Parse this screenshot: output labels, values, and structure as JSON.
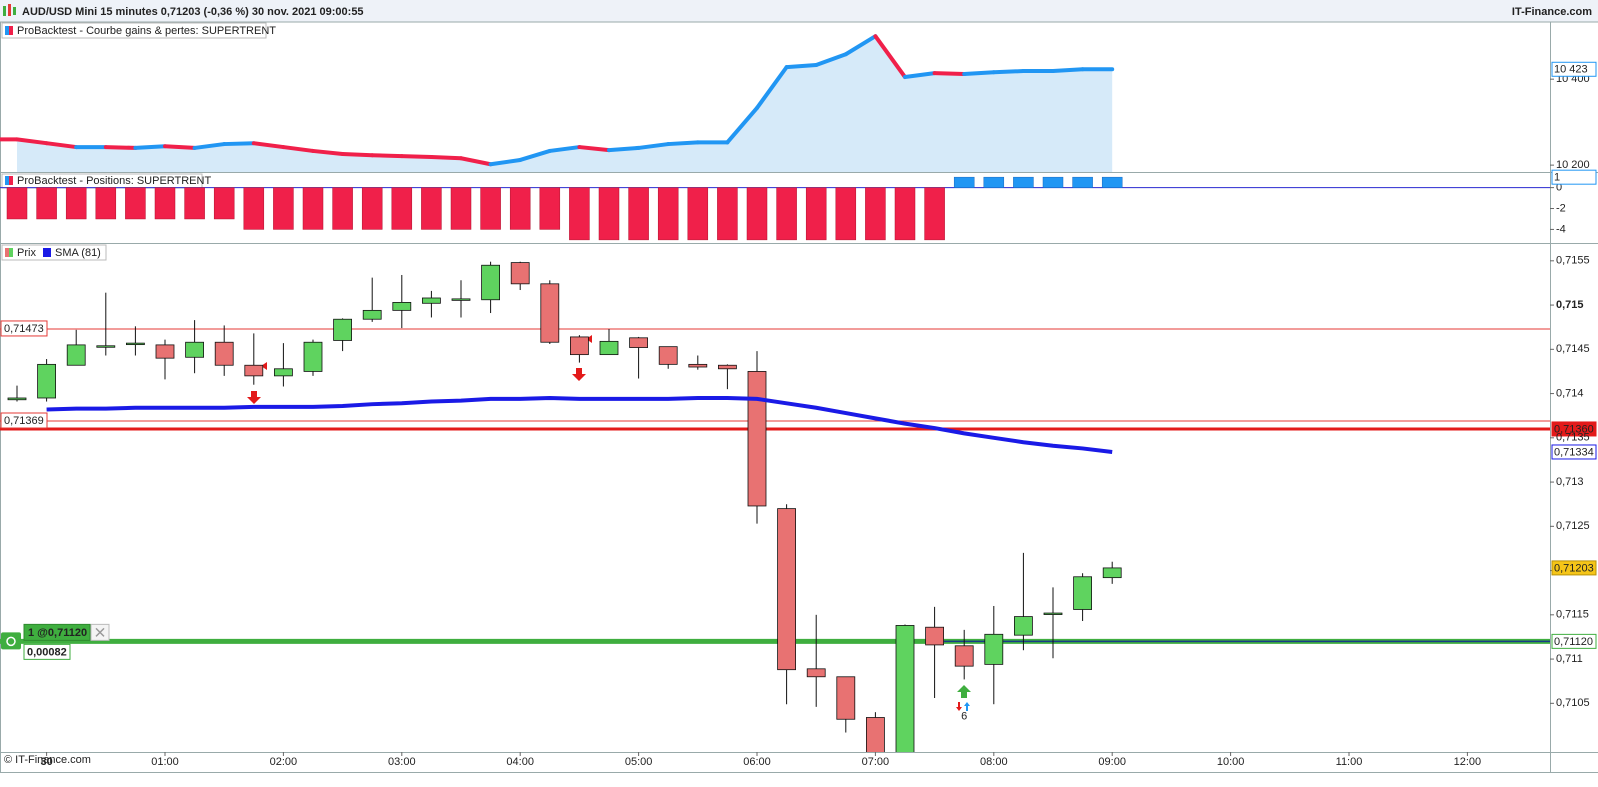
{
  "header": {
    "title": "AUD/USD Mini 15 minutes 0,71203 (-0,36 %) 30 nov. 2021 09:00:55",
    "brand": "IT-Finance.com"
  },
  "footer": {
    "copyright": "© IT-Finance.com"
  },
  "chart_data": [
    {
      "type": "area-line",
      "title": "ProBacktest - Courbe gains & pertes: SUPERTRENT",
      "color_up": "#2196f3",
      "color_down": "#f0204a",
      "fill": "#d6eaf9",
      "values": [
        10260,
        10251,
        10242,
        10242,
        10240,
        10244,
        10240,
        10249,
        10251,
        10242,
        10233,
        10226,
        10223,
        10221,
        10219,
        10216,
        10202,
        10212,
        10233,
        10242,
        10235,
        10240,
        10249,
        10253,
        10253,
        10333,
        10428,
        10433,
        10458,
        10500,
        10405,
        10414,
        10412,
        10416,
        10419,
        10419,
        10423,
        10423,
        null,
        null,
        null,
        null,
        null,
        null,
        null,
        null,
        null,
        null,
        null,
        null,
        null,
        null
      ],
      "value_labels": [
        null,
        null,
        null,
        null,
        null,
        null,
        null,
        null,
        null,
        null,
        null,
        null,
        null,
        null,
        null,
        null,
        null,
        null,
        null,
        null,
        null,
        null,
        null,
        null,
        null,
        null,
        null,
        null,
        null,
        null,
        null,
        null,
        null,
        null,
        null,
        null,
        null,
        "10 423",
        null,
        null,
        null,
        null,
        null,
        null,
        null,
        null,
        null,
        null,
        null,
        null,
        null,
        null
      ],
      "ylim": [
        10184,
        10533
      ],
      "yticks": [
        {
          "value": 10400,
          "label": "10 400"
        },
        {
          "value": 10200,
          "label": "10 200"
        }
      ]
    },
    {
      "type": "bar",
      "title": "ProBacktest - Positions: SUPERTRENT",
      "color_up": "#2196f3",
      "color_down": "#f0204a",
      "values": [
        -3,
        -3,
        -3,
        -3,
        -3,
        -3,
        -3,
        -3,
        -4,
        -4,
        -4,
        -4,
        -4,
        -4,
        -4,
        -4,
        -4,
        -4,
        -4,
        -5,
        -5,
        -5,
        -5,
        -5,
        -5,
        -5,
        -5,
        -5,
        -5,
        -5,
        -5,
        -5,
        1,
        1,
        1,
        1,
        1,
        1,
        null,
        null,
        null,
        null,
        null,
        null,
        null,
        null,
        null,
        null,
        null,
        null,
        null,
        null
      ],
      "ylim": [
        -5.3,
        1.4
      ],
      "yticks": [
        0,
        -2,
        -4
      ]
    },
    {
      "type": "candlestick",
      "categories": [
        null,
        "30",
        null,
        null,
        null,
        "01:00",
        null,
        null,
        null,
        "02:00",
        null,
        null,
        null,
        "03:00",
        null,
        null,
        null,
        "04:00",
        null,
        null,
        null,
        "05:00",
        null,
        null,
        null,
        "06:00",
        null,
        null,
        null,
        "07:00",
        null,
        null,
        null,
        "08:00",
        null,
        null,
        null,
        "09:00",
        null,
        null,
        null,
        "10:00",
        null,
        null,
        null,
        "11:00",
        null,
        null,
        null,
        "12:00",
        null,
        null
      ],
      "ohlc": {
        "name": "Prix",
        "color_up": "#5fd35f",
        "color_down": "#e87272",
        "last_label": "0,71203",
        "open": [
          0.71393,
          0.71395,
          0.71432,
          0.71453,
          0.71456,
          0.71455,
          0.71441,
          0.71458,
          0.71432,
          0.7142,
          0.71425,
          0.7146,
          0.71484,
          0.71494,
          0.71502,
          0.71506,
          0.71506,
          0.71548,
          0.71524,
          0.71464,
          0.71444,
          0.71463,
          0.71453,
          0.71433,
          0.71432,
          0.71425,
          0.7127,
          0.71089,
          0.7108,
          0.71034,
          0.70984,
          0.71136,
          0.71115,
          0.71094,
          0.71127,
          0.71151,
          0.71156,
          0.71192,
          null,
          null,
          null,
          null,
          null,
          null,
          null,
          null,
          null,
          null,
          null,
          null,
          null,
          null
        ],
        "high": [
          0.71409,
          0.71439,
          0.71472,
          0.71514,
          0.71476,
          0.71461,
          0.71483,
          0.71477,
          0.71468,
          0.71457,
          0.71461,
          0.71485,
          0.71531,
          0.71534,
          0.71516,
          0.71528,
          0.71549,
          0.71549,
          0.71528,
          0.71466,
          0.71473,
          0.71464,
          0.71453,
          0.71443,
          0.71433,
          0.71448,
          0.71275,
          0.7115,
          0.7108,
          0.7104,
          0.71139,
          0.71159,
          0.71133,
          0.7116,
          0.7122,
          0.71181,
          0.71197,
          0.7121,
          null,
          null,
          null,
          null,
          null,
          null,
          null,
          null,
          null,
          null,
          null,
          null,
          null,
          null
        ],
        "low": [
          0.71391,
          0.71391,
          0.71432,
          0.71443,
          0.71443,
          0.71416,
          0.71423,
          0.7142,
          0.7141,
          0.71408,
          0.7142,
          0.71448,
          0.71481,
          0.71474,
          0.71486,
          0.71486,
          0.71491,
          0.71517,
          0.71456,
          0.71435,
          0.71444,
          0.71417,
          0.71428,
          0.71427,
          0.71405,
          0.71253,
          0.71049,
          0.71046,
          0.71017,
          0.70961,
          0.70984,
          0.71056,
          0.71077,
          0.71049,
          0.7111,
          0.71101,
          0.71143,
          0.71185,
          null,
          null,
          null,
          null,
          null,
          null,
          null,
          null,
          null,
          null,
          null,
          null,
          null,
          null
        ],
        "close": [
          0.71395,
          0.71433,
          0.71455,
          0.71454,
          0.71457,
          0.7144,
          0.71458,
          0.71432,
          0.7142,
          0.71428,
          0.71458,
          0.71484,
          0.71494,
          0.71503,
          0.71508,
          0.71507,
          0.71545,
          0.71524,
          0.71458,
          0.71444,
          0.71459,
          0.71452,
          0.71433,
          0.7143,
          0.71428,
          0.71273,
          0.71088,
          0.7108,
          0.71032,
          0.70984,
          0.71138,
          0.71116,
          0.71092,
          0.71128,
          0.71148,
          0.71152,
          0.71193,
          0.71203,
          null,
          null,
          null,
          null,
          null,
          null,
          null,
          null,
          null,
          null,
          null,
          null,
          null,
          null
        ]
      },
      "series": [
        {
          "name": "SMA (81)",
          "color": "#1a1ae6",
          "last_label": "0,71334",
          "values": [
            null,
            0.71382,
            0.71383,
            0.71383,
            0.71384,
            0.71384,
            0.71384,
            0.71384,
            0.71385,
            0.71385,
            0.71385,
            0.71386,
            0.71388,
            0.71389,
            0.71391,
            0.71392,
            0.71394,
            0.71394,
            0.71395,
            0.71394,
            0.71394,
            0.71394,
            0.71394,
            0.71395,
            0.71395,
            0.71394,
            0.71389,
            0.71384,
            0.71378,
            0.71372,
            0.71366,
            0.71361,
            0.71355,
            0.7135,
            0.71345,
            0.71341,
            0.71338,
            0.71334,
            null,
            null,
            null,
            null,
            null,
            null,
            null,
            null,
            null,
            null,
            null,
            null,
            null,
            null
          ]
        }
      ],
      "levels": [
        {
          "value": 0.71473,
          "label": "0,71473",
          "color": "#e53935",
          "side": "left",
          "width": 1
        },
        {
          "value": 0.71369,
          "label": "0,71369",
          "color": "#e53935",
          "side": "left",
          "width": 1
        },
        {
          "value": 0.7136,
          "label": "0,71360",
          "color": "#e31a1a",
          "side": "right",
          "width": 3
        }
      ],
      "position": {
        "value": 0.7112,
        "label": "1 @0,71120",
        "value_label": "0,71120",
        "pnl": "0,00082",
        "color": "#3fae3f"
      },
      "annotations": [
        {
          "index": 32,
          "text": "6"
        }
      ],
      "ylim": [
        0.70995,
        0.71569
      ],
      "yticks": [
        {
          "value": 0.7155,
          "label": "0,7155"
        },
        {
          "value": 0.715,
          "label": "0,715"
        },
        {
          "value": 0.7145,
          "label": "0,7145"
        },
        {
          "value": 0.714,
          "label": "0,714"
        },
        {
          "value": 0.7135,
          "label": "0,7135"
        },
        {
          "value": 0.713,
          "label": "0,713"
        },
        {
          "value": 0.7125,
          "label": "0,7125"
        },
        {
          "value": 0.712,
          "label": "0,712"
        },
        {
          "value": 0.7115,
          "label": "0,7115"
        },
        {
          "value": 0.711,
          "label": "0,711"
        },
        {
          "value": 0.7105,
          "label": "0,7105"
        }
      ]
    }
  ]
}
